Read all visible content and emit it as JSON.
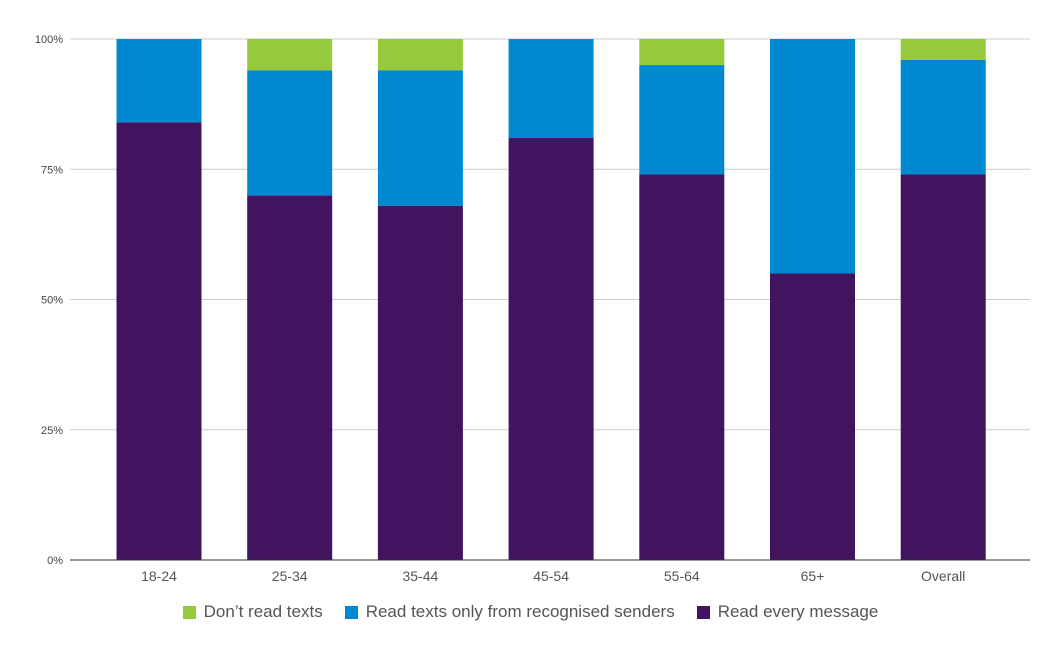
{
  "chart_data": {
    "type": "bar",
    "stacked": true,
    "title": "",
    "xlabel": "",
    "ylabel": "",
    "ylim": [
      0,
      100
    ],
    "y_ticks": [
      {
        "value": 0,
        "label": "0%"
      },
      {
        "value": 25,
        "label": "25%"
      },
      {
        "value": 50,
        "label": "50%"
      },
      {
        "value": 75,
        "label": "75%"
      },
      {
        "value": 100,
        "label": "100%"
      }
    ],
    "categories": [
      "18-24",
      "25-34",
      "35-44",
      "45-54",
      "55-64",
      "65+",
      "Overall"
    ],
    "series": [
      {
        "name": "Read every message",
        "color": "#42145f",
        "values": [
          84,
          70,
          68,
          81,
          74,
          55,
          74
        ]
      },
      {
        "name": "Read texts only from recognised senders",
        "color": "#0089d1",
        "values": [
          16,
          24,
          26,
          19,
          21,
          45,
          22
        ]
      },
      {
        "name": "Don’t read texts",
        "color": "#97c93d",
        "values": [
          0,
          6,
          6,
          0,
          5,
          0,
          4
        ]
      }
    ],
    "legend": {
      "position": "bottom",
      "order": [
        "Don’t read texts",
        "Read texts only from recognised senders",
        "Read every message"
      ]
    },
    "grid": true
  }
}
